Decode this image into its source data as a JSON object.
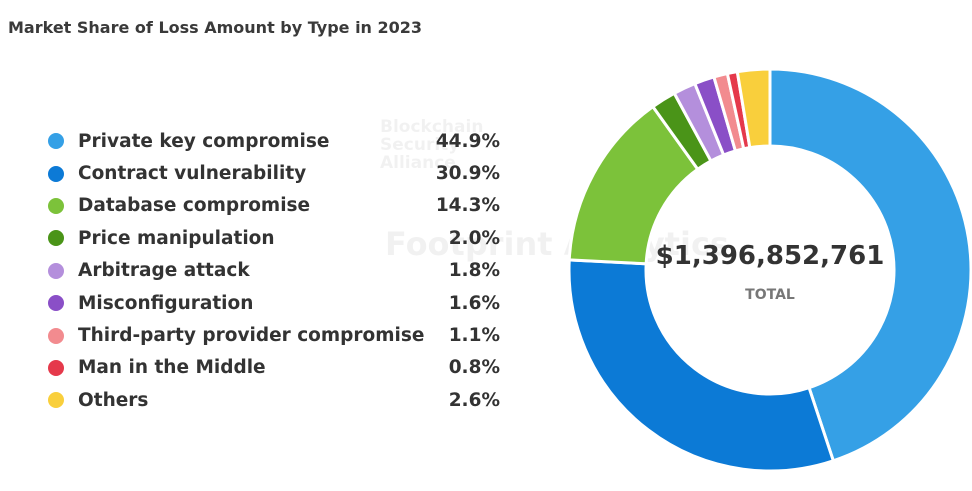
{
  "chart_data": {
    "type": "pie",
    "variant": "donut",
    "title": "Market Share of Loss Amount by Type in 2023",
    "center_value": "$1,396,852,761",
    "center_label": "TOTAL",
    "legend_position": "left",
    "categories": [
      "Private key compromise",
      "Contract vulnerability",
      "Database compromise",
      "Price manipulation",
      "Arbitrage attack",
      "Misconfiguration",
      "Third-party provider compromise",
      "Man in the Middle",
      "Others"
    ],
    "values": [
      44.9,
      30.9,
      14.3,
      2.0,
      1.8,
      1.6,
      1.1,
      0.8,
      2.6
    ],
    "labels": [
      "44.9%",
      "30.9%",
      "14.3%",
      "2.0%",
      "1.8%",
      "1.6%",
      "1.1%",
      "0.8%",
      "2.6%"
    ],
    "colors": [
      "#35a0e6",
      "#0c7ad6",
      "#7cc23a",
      "#4a9418",
      "#b48fdc",
      "#8a4fc7",
      "#f28b8f",
      "#e5394b",
      "#f9cf3c"
    ]
  },
  "watermarks": [
    "Blockchain Security Alliance",
    "Footprint Analytics"
  ]
}
